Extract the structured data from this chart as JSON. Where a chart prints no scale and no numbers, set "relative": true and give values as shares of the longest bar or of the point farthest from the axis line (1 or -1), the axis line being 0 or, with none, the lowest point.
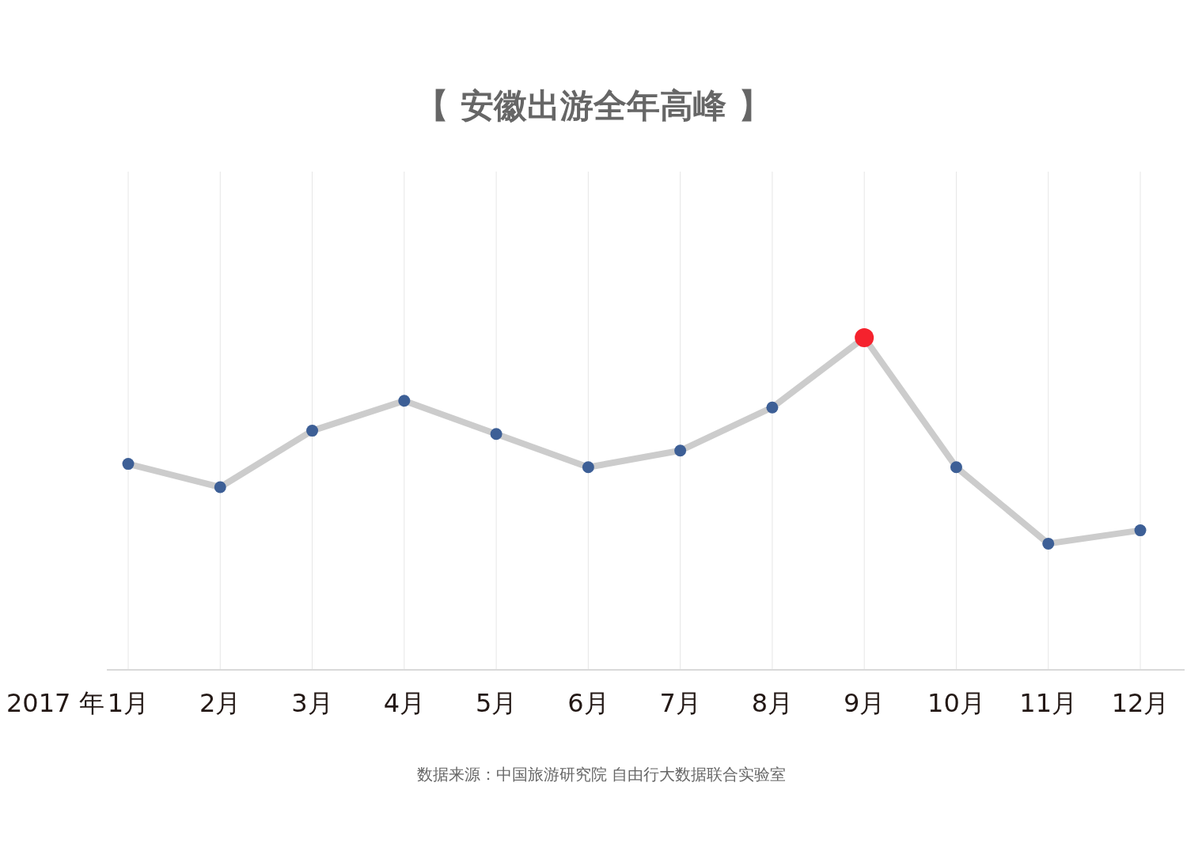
{
  "chart_data": {
    "type": "line",
    "title": "【 安徽出游全年高峰 】",
    "xlabel": "2017 年",
    "relative": true,
    "grid": "x",
    "marker": "circle",
    "line_style": "solid",
    "categories": [
      "1月",
      "2月",
      "3月",
      "4月",
      "5月",
      "6月",
      "7月",
      "8月",
      "9月",
      "10月",
      "11月",
      "12月"
    ],
    "series": [
      {
        "color": "#cccccc",
        "colors": [
          "#3d5f96",
          "#3d5f96",
          "#3d5f96",
          "#3d5f96",
          "#3d5f96",
          "#3d5f96",
          "#3d5f96",
          "#3d5f96",
          "#f5222d",
          "#3d5f96",
          "#3d5f96",
          "#3d5f96"
        ],
        "values": [
          0.62,
          0.55,
          0.72,
          0.81,
          0.71,
          0.61,
          0.66,
          0.79,
          1,
          0.61,
          0.38,
          0.42
        ]
      }
    ],
    "annotations": [
      "数据来源：中国旅游研究院 自由行大数据联合实验室"
    ]
  }
}
